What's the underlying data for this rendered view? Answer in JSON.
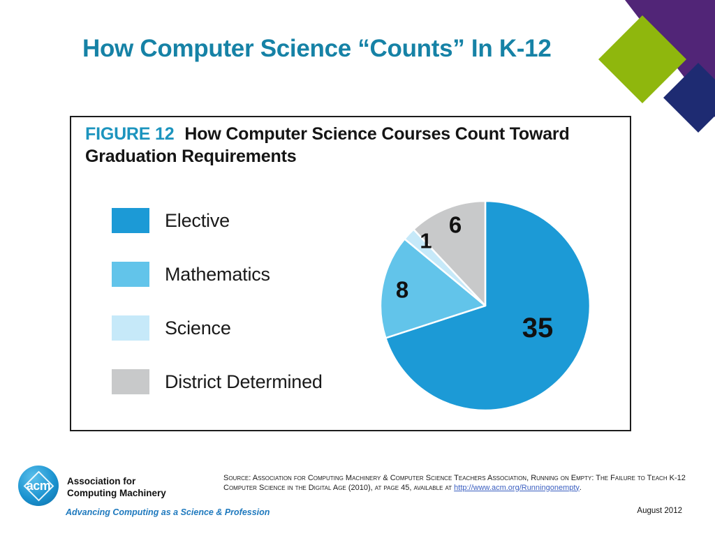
{
  "slide": {
    "title": "How Computer Science “Counts” In K-12"
  },
  "figure": {
    "label": "FIGURE 12",
    "title_line1": "How Computer Science Courses Count Toward",
    "title_line2": "Graduation Requirements"
  },
  "chart_data": {
    "type": "pie",
    "title": "How Computer Science Courses Count Toward Graduation Requirements",
    "categories": [
      "Elective",
      "Mathematics",
      "Science",
      "District Determined"
    ],
    "values": [
      35,
      8,
      1,
      6
    ],
    "colors": [
      "#1C9AD6",
      "#62C4EA",
      "#C6E9F9",
      "#C8C9CA"
    ],
    "start_angle_deg": 0,
    "direction": "clockwise",
    "legend_position": "left"
  },
  "legend": {
    "items": [
      {
        "label": "Elective",
        "color": "#1C9AD6"
      },
      {
        "label": "Mathematics",
        "color": "#62C4EA"
      },
      {
        "label": "Science",
        "color": "#C6E9F9"
      },
      {
        "label": "District Determined",
        "color": "#C8C9CA"
      }
    ]
  },
  "decorations": {
    "purple": "#512577",
    "green": "#8FB70D",
    "navy": "#1E2B72"
  },
  "footer": {
    "logo_text": "acm",
    "org_line1": "Association for",
    "org_line2": "Computing Machinery",
    "tagline": "Advancing Computing as a Science & Profession",
    "source_prefix": "Source: Association for Computing Machinery & Computer Science Teachers Association, Running on Empty: The Failure to Teach K-12 Computer Science in the Digital Age (2010), at page 45, available at ",
    "source_link": "http://www.acm.org/Runningonempty",
    "source_suffix": ".",
    "date": "August 2012"
  }
}
